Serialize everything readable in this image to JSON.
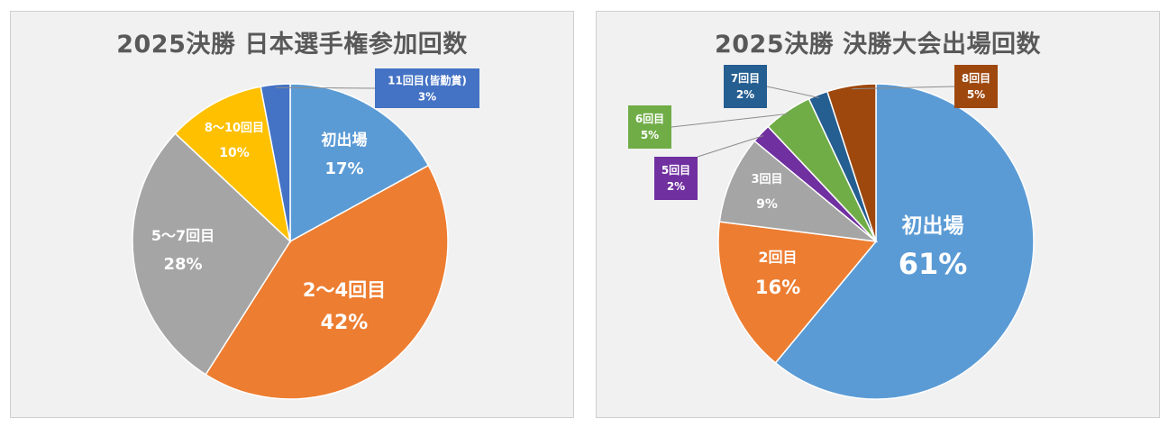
{
  "chart_data": [
    {
      "type": "pie",
      "title": "2025決勝 日本選手権参加回数",
      "unit": "%",
      "slices": [
        {
          "label": "初出場",
          "value": 17,
          "display": "17%",
          "color": "#5B9BD5",
          "text_color": "#ffffff"
        },
        {
          "label": "2〜4回目",
          "value": 42,
          "display": "42%",
          "color": "#ED7D31",
          "text_color": "#ffffff"
        },
        {
          "label": "5〜7回目",
          "value": 28,
          "display": "28%",
          "color": "#A5A5A5",
          "text_color": "#ffffff"
        },
        {
          "label": "8〜10回目",
          "value": 10,
          "display": "10%",
          "color": "#FFC000",
          "text_color": "#ffffff"
        },
        {
          "label": "11回目(皆勤賞)",
          "value": 3,
          "display": "3%",
          "color": "#4472C4",
          "text_color": "#ffffff"
        }
      ]
    },
    {
      "type": "pie",
      "title": "2025決勝 決勝大会出場回数",
      "unit": "%",
      "slices": [
        {
          "label": "初出場",
          "value": 61,
          "display": "61%",
          "color": "#5B9BD5",
          "text_color": "#ffffff"
        },
        {
          "label": "2回目",
          "value": 16,
          "display": "16%",
          "color": "#ED7D31",
          "text_color": "#ffffff"
        },
        {
          "label": "3回目",
          "value": 9,
          "display": "9%",
          "color": "#A5A5A5",
          "text_color": "#ffffff"
        },
        {
          "label": "5回目",
          "value": 2,
          "display": "2%",
          "color": "#7030A0",
          "text_color": "#ffffff"
        },
        {
          "label": "6回目",
          "value": 5,
          "display": "5%",
          "color": "#70AD47",
          "text_color": "#ffffff"
        },
        {
          "label": "7回目",
          "value": 2,
          "display": "2%",
          "color": "#255E91",
          "text_color": "#ffffff"
        },
        {
          "label": "8回目",
          "value": 5,
          "display": "5%",
          "color": "#9E480E",
          "text_color": "#ffffff"
        }
      ]
    }
  ]
}
